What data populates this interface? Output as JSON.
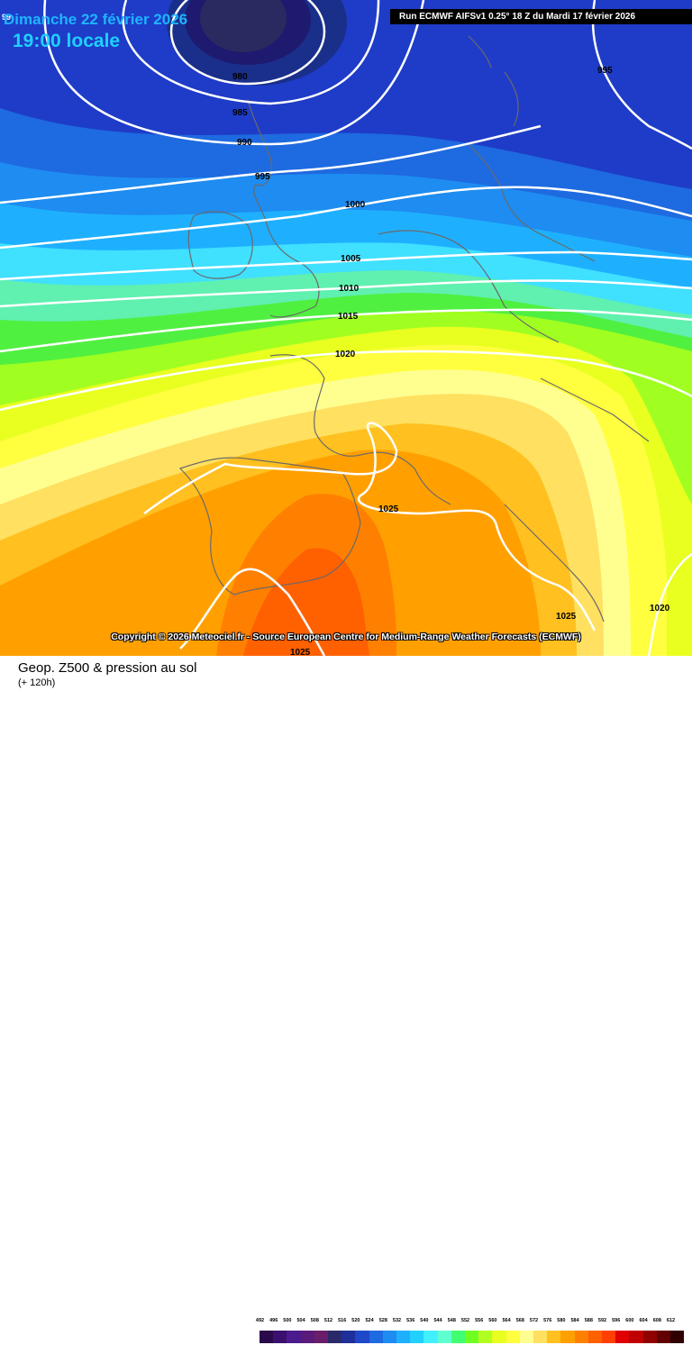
{
  "header": {
    "date": "Dimanche 22 février 2026",
    "time": "19:00 locale",
    "run_info": "Run ECMWF AIFSv1 0.25° 18 Z du Mardi 17 février 2026",
    "corner_label": "99"
  },
  "copyright": "Copyright © 2026 Meteociel.fr - Source European Centre for Medium-Range Weather Forecasts (ECMWF)",
  "footer": {
    "title": "Geop. Z500 & pression au sol",
    "subtitle": "(+ 120h)"
  },
  "isobar_labels": [
    "980",
    "985",
    "990",
    "995",
    "995",
    "1000",
    "1005",
    "1010",
    "1015",
    "1020",
    "1025",
    "1025",
    "1025",
    "1020"
  ],
  "legend": {
    "ticks": [
      "492",
      "496",
      "500",
      "504",
      "508",
      "512",
      "516",
      "520",
      "524",
      "528",
      "532",
      "536",
      "540",
      "544",
      "548",
      "552",
      "556",
      "560",
      "564",
      "568",
      "572",
      "576",
      "580",
      "584",
      "588",
      "592",
      "596",
      "600",
      "604",
      "608",
      "612"
    ],
    "colors": [
      "#2a0a4a",
      "#3b0f6e",
      "#4b1a8c",
      "#5a1a7a",
      "#6a1e6a",
      "#2a2a6a",
      "#1e2f9a",
      "#1e48c8",
      "#1e6ae0",
      "#1e8cf0",
      "#1eb0ff",
      "#22d0ff",
      "#40f0ff",
      "#60ffd0",
      "#40ff70",
      "#70ff20",
      "#b0ff20",
      "#e8ff20",
      "#ffff40",
      "#ffff90",
      "#ffe060",
      "#ffc020",
      "#ffa000",
      "#ff8000",
      "#ff6000",
      "#ff4000",
      "#e00000",
      "#c00000",
      "#900000",
      "#600000",
      "#300000"
    ]
  }
}
